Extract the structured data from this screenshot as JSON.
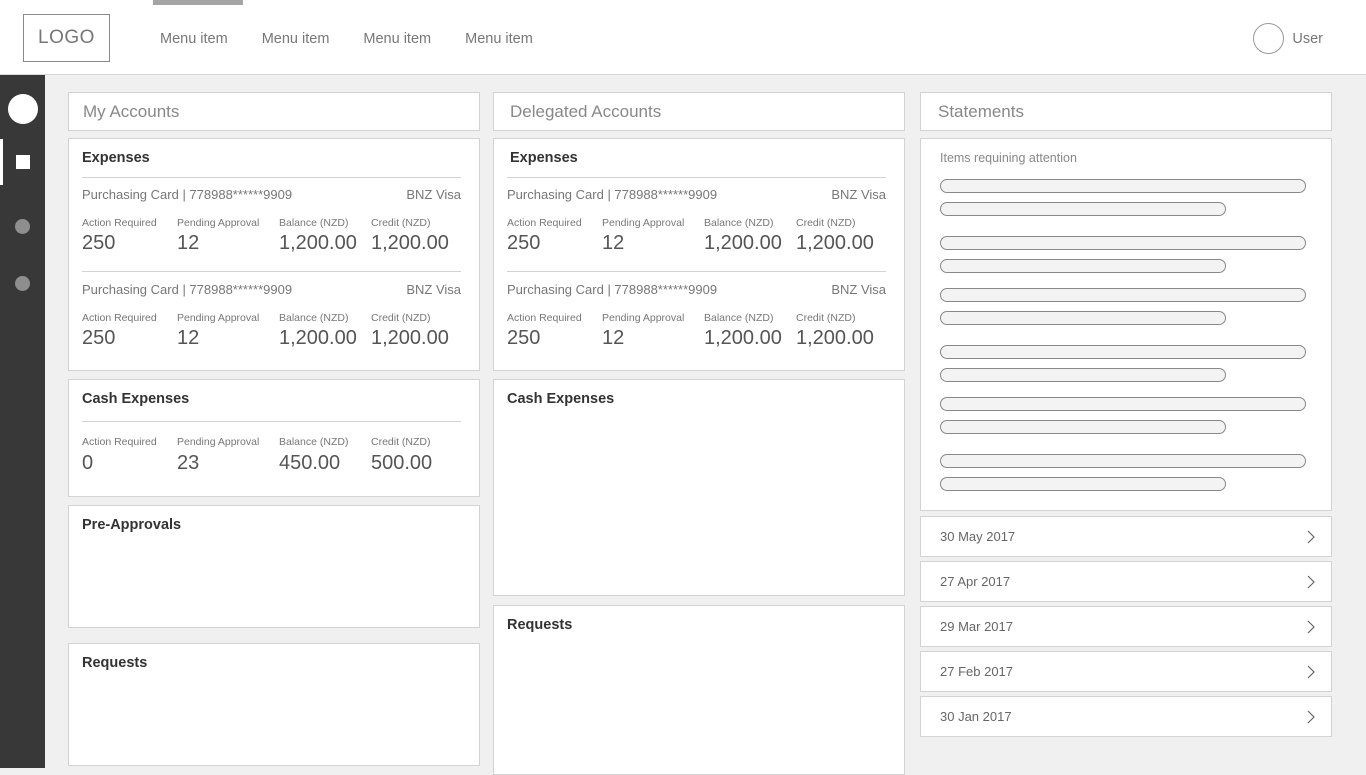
{
  "header": {
    "logo": "LOGO",
    "menu": [
      "Menu item",
      "Menu item",
      "Menu item",
      "Menu item"
    ],
    "user": "User"
  },
  "columns": {
    "my_accounts": "My Accounts",
    "delegated_accounts": "Delegated Accounts",
    "statements": "Statements"
  },
  "my": {
    "expenses_title": "Expenses",
    "cards": [
      {
        "line": "Purchasing Card | 778988******9909",
        "brand": "BNZ Visa",
        "labels": [
          "Action Required",
          "Pending Approval",
          "Balance (NZD)",
          "Credit (NZD)"
        ],
        "values": [
          "250",
          "12",
          "1,200.00",
          "1,200.00"
        ]
      },
      {
        "line": "Purchasing Card | 778988******9909",
        "brand": "BNZ Visa",
        "labels": [
          "Action Required",
          "Pending Approval",
          "Balance (NZD)",
          "Credit (NZD)"
        ],
        "values": [
          "250",
          "12",
          "1,200.00",
          "1,200.00"
        ]
      }
    ],
    "cash_title": "Cash Expenses",
    "cash": {
      "labels": [
        "Action Required",
        "Pending Approval",
        "Balance (NZD)",
        "Credit (NZD)"
      ],
      "values": [
        "0",
        "23",
        "450.00",
        "500.00"
      ]
    },
    "preapprovals_title": "Pre-Approvals",
    "requests_title": "Requests"
  },
  "delegated": {
    "expenses_title": "Expenses",
    "cards": [
      {
        "line": "Purchasing Card | 778988******9909",
        "brand": "BNZ Visa",
        "labels": [
          "Action Required",
          "Pending Approval",
          "Balance (NZD)",
          "Credit (NZD)"
        ],
        "values": [
          "250",
          "12",
          "1,200.00",
          "1,200.00"
        ]
      },
      {
        "line": "Purchasing Card | 778988******9909",
        "brand": "BNZ Visa",
        "labels": [
          "Action Required",
          "Pending Approval",
          "Balance (NZD)",
          "Credit (NZD)"
        ],
        "values": [
          "250",
          "12",
          "1,200.00",
          "1,200.00"
        ]
      }
    ],
    "cash_title": "Cash Expenses",
    "requests_title": "Requests"
  },
  "statements": {
    "attention_title": "Items requining attention",
    "dates": [
      "30 May 2017",
      "27 Apr 2017",
      "29 Mar 2017",
      "27 Feb 2017",
      "30 Jan 2017"
    ]
  }
}
